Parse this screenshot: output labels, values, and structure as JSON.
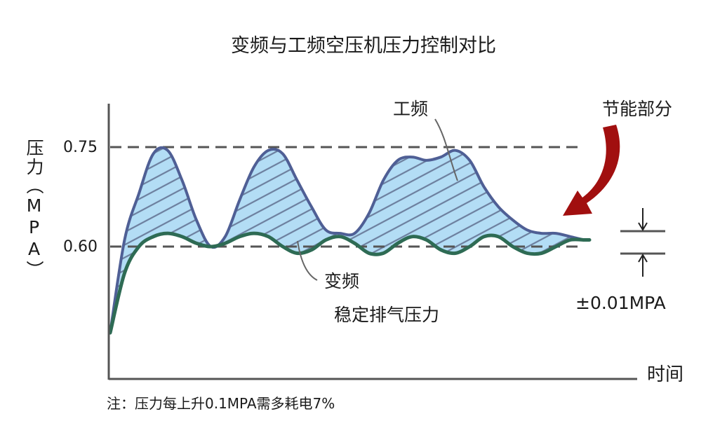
{
  "chart_data": {
    "type": "area",
    "title": "变频与工频空压机压力控制对比",
    "ylabel": "压力（MPA）",
    "xlabel": "时间",
    "yticks": [
      "0.75",
      "0.60"
    ],
    "ylim": [
      0.45,
      0.8
    ],
    "reference_lines": [
      0.75,
      0.6
    ],
    "series": [
      {
        "name": "工频",
        "x": [
          0,
          3,
          6,
          9,
          12,
          15,
          18,
          21,
          24,
          27,
          30,
          33,
          36,
          39,
          42,
          45,
          48,
          51,
          54,
          57,
          60,
          63,
          66,
          69,
          72,
          75,
          78,
          81,
          84,
          87,
          90,
          93,
          96,
          99,
          100
        ],
        "values": [
          0.47,
          0.61,
          0.68,
          0.74,
          0.745,
          0.7,
          0.64,
          0.6,
          0.615,
          0.67,
          0.72,
          0.745,
          0.74,
          0.7,
          0.66,
          0.625,
          0.62,
          0.62,
          0.65,
          0.7,
          0.73,
          0.735,
          0.73,
          0.735,
          0.745,
          0.73,
          0.69,
          0.66,
          0.64,
          0.625,
          0.62,
          0.62,
          0.615,
          0.61,
          0.61
        ]
      },
      {
        "name": "变频",
        "x": [
          0,
          3,
          6,
          9,
          12,
          15,
          18,
          21,
          24,
          27,
          30,
          33,
          36,
          39,
          42,
          45,
          48,
          51,
          54,
          57,
          60,
          63,
          66,
          69,
          72,
          75,
          78,
          81,
          84,
          87,
          90,
          93,
          96,
          99,
          100
        ],
        "values": [
          0.47,
          0.56,
          0.6,
          0.615,
          0.62,
          0.615,
          0.605,
          0.6,
          0.605,
          0.615,
          0.62,
          0.615,
          0.6,
          0.59,
          0.595,
          0.61,
          0.615,
          0.605,
          0.59,
          0.59,
          0.605,
          0.615,
          0.61,
          0.595,
          0.59,
          0.6,
          0.615,
          0.615,
          0.6,
          0.59,
          0.59,
          0.6,
          0.61,
          0.61,
          0.61
        ]
      }
    ],
    "annotations": {
      "saving": "节能部分",
      "stable_line1": "稳定排气压力",
      "tolerance": "±0.01MPA"
    },
    "note": "注：压力每上升0.1MPA需多耗电7%"
  },
  "colors": {
    "fill": "#b3ddf5",
    "hatch": "#6c7f9e",
    "line_gongpin": "#4f5f95",
    "line_bianpin": "#2e6b54",
    "dashed": "#555555",
    "arrow": "#a10f0f",
    "axis": "#555555"
  }
}
